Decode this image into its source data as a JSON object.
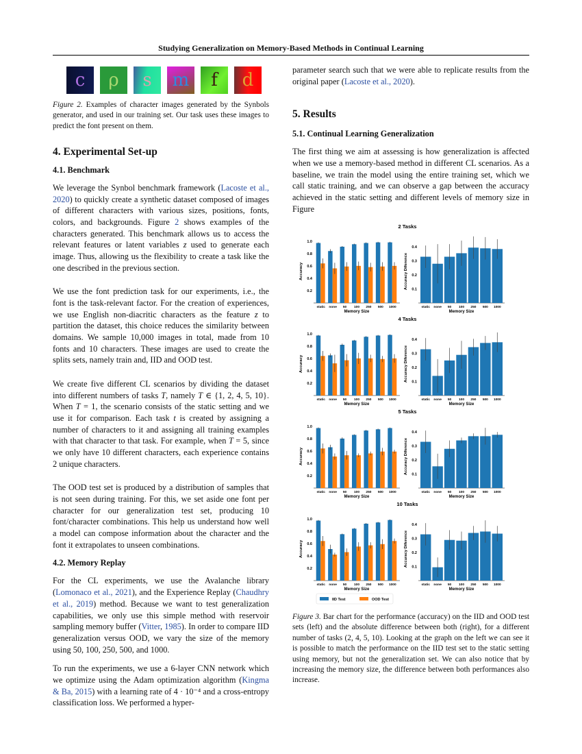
{
  "header": "Studying Generalization on Memory-Based Methods in Continual Learning",
  "figure2": {
    "images": [
      {
        "char": "c",
        "fg": "#b070e0",
        "bg": "linear-gradient(90deg,#0a1030,#101a50)"
      },
      {
        "char": "ρ",
        "fg": "#a8d870",
        "bg": "#2a9a3a"
      },
      {
        "char": "s",
        "fg": "#d8a0b0",
        "bg": "linear-gradient(100deg,#4060a0,#20e0a0 45%,#30e8a0)"
      },
      {
        "char": "m",
        "fg": "#2f8ae0",
        "bg": "linear-gradient(160deg,#e020e0,#a04070 60%,#806020)"
      },
      {
        "char": "f",
        "fg": "#3a1a10",
        "bg": "linear-gradient(130deg,#30a020,#70f030 60%,#50d020)"
      },
      {
        "char": "d",
        "fg": "#e0a030",
        "bg": "linear-gradient(90deg,#703030,#ff1010 50%,#ff0000)"
      }
    ],
    "caption": [
      {
        "t": "Figure 2.",
        "s": "i"
      },
      {
        "t": " Examples of character images generated by the Synbols generator, and used in our training set. Our task uses these images to predict the font present on them."
      }
    ]
  },
  "left": {
    "section4": "4. Experimental Set-up",
    "sub41": "4.1. Benchmark",
    "p1": [
      {
        "t": "We leverage the Synbol benchmark framework ("
      },
      {
        "t": "Lacoste et al., 2020",
        "s": "c"
      },
      {
        "t": ") to quickly create a synthetic dataset composed of images of different characters with various sizes, positions, fonts, colors, and backgrounds. Figure "
      },
      {
        "t": "2",
        "s": "c"
      },
      {
        "t": " shows examples of the characters generated. This benchmark allows us to access the relevant features or latent variables "
      },
      {
        "t": "z",
        "s": "m"
      },
      {
        "t": " used to generate each image. Thus, allowing us the flexibility to create a task like the one described in the previous section."
      }
    ],
    "p2": [
      {
        "t": "We use the font prediction task for our experiments, i.e., the font is the task-relevant factor. For the creation of experiences, we use English non-diacritic characters as the feature "
      },
      {
        "t": "z",
        "s": "m"
      },
      {
        "t": " to partition the dataset, this choice reduces the similarity between domains. We sample 10,000 images in total, made from 10 fonts and 10 characters. These images are used to create the splits sets, namely train and, IID and OOD test."
      }
    ],
    "p3": [
      {
        "t": "We create five different CL scenarios by dividing the dataset into different numbers of tasks "
      },
      {
        "t": "T",
        "s": "m"
      },
      {
        "t": ", namely "
      },
      {
        "t": "T",
        "s": "m"
      },
      {
        "t": " ∈ {1, 2, 4, 5, 10}. When "
      },
      {
        "t": "T",
        "s": "m"
      },
      {
        "t": " = 1, the scenario consists of the static setting and we use it for comparison. Each task "
      },
      {
        "t": "t",
        "s": "m"
      },
      {
        "t": " is created by assigning a number of characters to it and assigning all training examples with that character to that task. For example, when "
      },
      {
        "t": "T",
        "s": "m"
      },
      {
        "t": " = 5, since we only have 10 different characters, each experience contains 2 unique characters."
      }
    ],
    "p4": [
      {
        "t": "The OOD test set is produced by a distribution of samples that is not seen during training. For this, we set aside one font per character for our generalization test set, producing 10 font/character combinations. This help us understand how well a model can compose information about the character and the font it extrapolates to unseen combinations."
      }
    ],
    "sub42": "4.2. Memory Replay",
    "p5": [
      {
        "t": "For the CL experiments, we use the Avalanche library ("
      },
      {
        "t": "Lomonaco et al., 2021",
        "s": "c"
      },
      {
        "t": "), and the Experience Replay ("
      },
      {
        "t": "Chaudhry et al., 2019",
        "s": "c"
      },
      {
        "t": ") method. Because we want to test generalization capabilities, we only use this simple method with reservoir sampling memory buffer ("
      },
      {
        "t": "Vitter",
        "s": "c"
      },
      {
        "t": ", "
      },
      {
        "t": "1985",
        "s": "c"
      },
      {
        "t": "). In order to compare IID generalization versus OOD, we vary the size of the memory using 50, 100, 250, 500, and 1000."
      }
    ],
    "p6": [
      {
        "t": "To run the experiments, we use a 6-layer CNN network which we optimize using the Adam optimization algorithm ("
      },
      {
        "t": "Kingma & Ba, 2015",
        "s": "c"
      },
      {
        "t": ") with a learning rate of 4 · 10⁻⁴ and a cross-entropy classification loss. We performed a hyper-"
      }
    ]
  },
  "right": {
    "p0": [
      {
        "t": "parameter search such that we were able to replicate results from the original paper ("
      },
      {
        "t": "Lacoste et al., 2020",
        "s": "c"
      },
      {
        "t": ")."
      }
    ],
    "section5": "5. Results",
    "sub51": "5.1. Continual Learning Generalization",
    "p1": [
      {
        "t": "The first thing we aim at assessing is how generalization is affected when we use a memory-based method in different CL scenarios. As a baseline, we train the model using the entire training set, which we call static training, and we can observe a gap between the accuracy achieved in the static setting and different levels of memory size in Figure"
      }
    ],
    "caption": [
      {
        "t": "Figure 3.",
        "s": "i"
      },
      {
        "t": " Bar chart for the performance (accuracy) on the IID and OOD test sets (left) and the absolute difference between both (right), for a different number of tasks (2, 4, 5, 10). Looking at the graph on the left we can see it is possible to match the performance on the IID test set to the static setting using memory, but not the generalization set. We can also notice that by increasing the memory size, the difference between both performances also increase."
      }
    ]
  },
  "colors": {
    "iid": "#1f77b4",
    "ood": "#ff7f0e",
    "cite": "#2a4ea0"
  },
  "chart_data": [
    {
      "type": "bar",
      "title": "2 Tasks",
      "categories": [
        "static",
        "none",
        "50",
        "100",
        "250",
        "500",
        "1000"
      ],
      "xlabel": "Memory Size",
      "left": {
        "ylabel": "Accuracy",
        "ylim": [
          0,
          1.02
        ],
        "yticks": [
          "0.2",
          "0.4",
          "0.6",
          "0.8",
          "1.0"
        ],
        "series": [
          {
            "name": "IID Test",
            "values": [
              0.97,
              0.84,
              0.91,
              0.95,
              0.97,
              0.98,
              0.98
            ],
            "err": [
              0.01,
              0.03,
              0.01,
              0.01,
              0.01,
              0.01,
              0.01
            ]
          },
          {
            "name": "OOD Test",
            "values": [
              0.64,
              0.56,
              0.59,
              0.6,
              0.58,
              0.59,
              0.6
            ],
            "err": [
              0.08,
              0.09,
              0.07,
              0.07,
              0.07,
              0.07,
              0.06
            ]
          }
        ]
      },
      "right": {
        "ylabel": "Accuracy Diference",
        "ylim": [
          0,
          0.45
        ],
        "yticks": [
          "0.1",
          "0.2",
          "0.3",
          "0.4"
        ],
        "values": [
          0.33,
          0.28,
          0.33,
          0.355,
          0.395,
          0.39,
          0.385
        ],
        "err": [
          0.08,
          0.14,
          0.09,
          0.09,
          0.08,
          0.08,
          0.07
        ]
      }
    },
    {
      "type": "bar",
      "title": "4 Tasks",
      "categories": [
        "static",
        "none",
        "50",
        "100",
        "250",
        "500",
        "1000"
      ],
      "xlabel": "Memory Size",
      "left": {
        "ylabel": "Accuracy",
        "ylim": [
          0,
          1.02
        ],
        "yticks": [
          "0.2",
          "0.4",
          "0.6",
          "0.8",
          "1.0"
        ],
        "series": [
          {
            "name": "IID Test",
            "values": [
              0.97,
              0.65,
              0.82,
              0.89,
              0.95,
              0.97,
              0.98
            ],
            "err": [
              0.01,
              0.03,
              0.02,
              0.01,
              0.01,
              0.01,
              0.01
            ]
          },
          {
            "name": "OOD Test",
            "values": [
              0.64,
              0.52,
              0.57,
              0.6,
              0.6,
              0.59,
              0.6
            ],
            "err": [
              0.08,
              0.14,
              0.1,
              0.09,
              0.06,
              0.05,
              0.07
            ]
          }
        ]
      },
      "right": {
        "ylabel": "Accuracy Diference",
        "ylim": [
          0,
          0.45
        ],
        "yticks": [
          "0.1",
          "0.2",
          "0.3",
          "0.4"
        ],
        "values": [
          0.33,
          0.14,
          0.25,
          0.29,
          0.345,
          0.375,
          0.38
        ],
        "err": [
          0.08,
          0.12,
          0.09,
          0.1,
          0.06,
          0.05,
          0.07
        ]
      }
    },
    {
      "type": "bar",
      "title": "5 Tasks",
      "categories": [
        "static",
        "none",
        "50",
        "100",
        "250",
        "500",
        "1000"
      ],
      "xlabel": "Memory Size",
      "left": {
        "ylabel": "Accuracy",
        "ylim": [
          0,
          1.02
        ],
        "yticks": [
          "0.2",
          "0.4",
          "0.6",
          "0.8",
          "1.0"
        ],
        "series": [
          {
            "name": "IID Test",
            "values": [
              0.97,
              0.66,
              0.8,
              0.86,
              0.93,
              0.95,
              0.97
            ],
            "err": [
              0.01,
              0.04,
              0.02,
              0.01,
              0.01,
              0.01,
              0.01
            ]
          },
          {
            "name": "OOD Test",
            "values": [
              0.64,
              0.51,
              0.53,
              0.53,
              0.56,
              0.59,
              0.59
            ],
            "err": [
              0.08,
              0.05,
              0.07,
              0.03,
              0.03,
              0.06,
              0.03
            ]
          }
        ]
      },
      "right": {
        "ylabel": "Accuracy Diference",
        "ylim": [
          0,
          0.45
        ],
        "yticks": [
          "0.1",
          "0.2",
          "0.3",
          "0.4"
        ],
        "values": [
          0.33,
          0.155,
          0.28,
          0.34,
          0.37,
          0.37,
          0.38
        ],
        "err": [
          0.08,
          0.09,
          0.06,
          0.02,
          0.02,
          0.06,
          0.02
        ]
      }
    },
    {
      "type": "bar",
      "title": "10 Tasks",
      "categories": [
        "static",
        "none",
        "50",
        "100",
        "250",
        "500",
        "1000"
      ],
      "xlabel": "Memory Size",
      "legend": [
        "IID Test",
        "OOD Test"
      ],
      "legend_position": "bottom-left",
      "left": {
        "ylabel": "Accuracy",
        "ylim": [
          0,
          1.02
        ],
        "yticks": [
          "0.2",
          "0.4",
          "0.6",
          "0.8",
          "1.0"
        ],
        "series": [
          {
            "name": "IID Test",
            "values": [
              0.97,
              0.51,
              0.75,
              0.84,
              0.92,
              0.94,
              0.98
            ],
            "err": [
              0.01,
              0.07,
              0.01,
              0.01,
              0.01,
              0.01,
              0.01
            ]
          },
          {
            "name": "OOD Test",
            "values": [
              0.64,
              0.42,
              0.46,
              0.55,
              0.57,
              0.59,
              0.64
            ],
            "err": [
              0.08,
              0.03,
              0.06,
              0.07,
              0.05,
              0.08,
              0.04
            ]
          }
        ]
      },
      "right": {
        "ylabel": "Accuracy Diference",
        "ylim": [
          0,
          0.45
        ],
        "yticks": [
          "0.1",
          "0.2",
          "0.3",
          "0.4"
        ],
        "values": [
          0.33,
          0.095,
          0.29,
          0.285,
          0.34,
          0.35,
          0.335
        ],
        "err": [
          0.08,
          0.07,
          0.07,
          0.065,
          0.05,
          0.08,
          0.055
        ]
      }
    }
  ]
}
